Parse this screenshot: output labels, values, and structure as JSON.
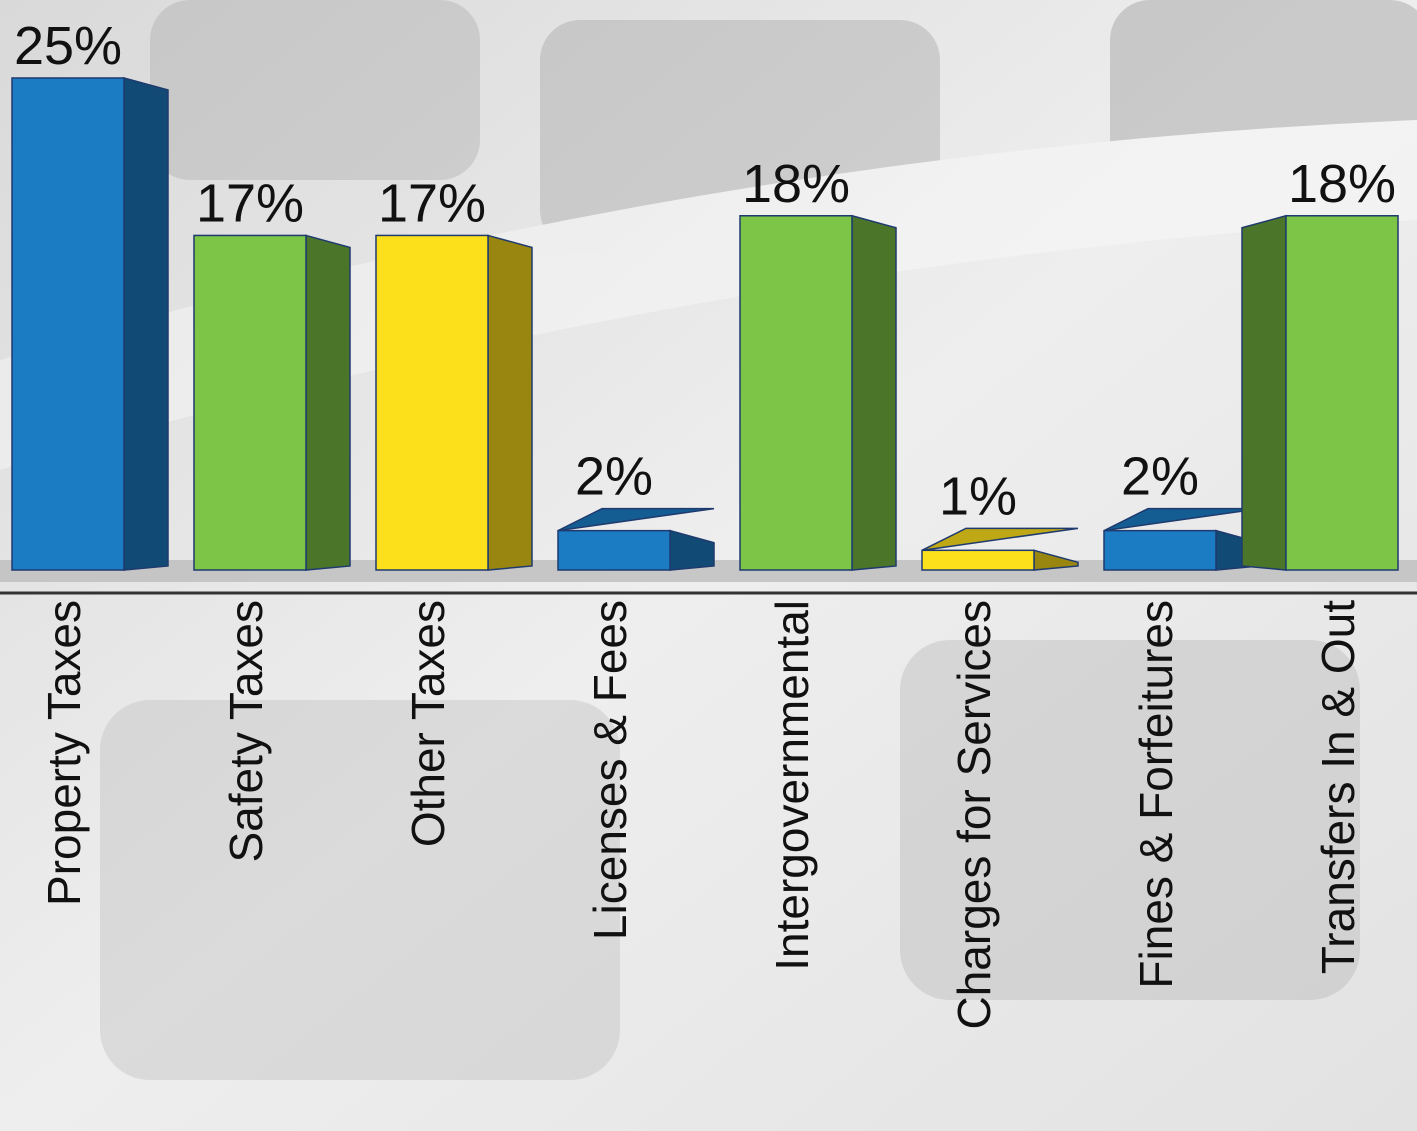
{
  "chart_data": {
    "type": "bar",
    "categories": [
      "Property Taxes",
      "Safety Taxes",
      "Other Taxes",
      "Licenses & Fees",
      "Intergovernmental",
      "Charges for Services",
      "Fines & Forfeitures",
      "Transfers In & Out"
    ],
    "values": [
      25,
      17,
      17,
      2,
      18,
      1,
      2,
      18
    ],
    "value_labels": [
      "25%",
      "17%",
      "17%",
      "2%",
      "18%",
      "1%",
      "2%",
      "18%"
    ],
    "colors": [
      "#1b7cc3",
      "#7dc546",
      "#fde01c",
      "#1b7cc3",
      "#7dc546",
      "#fde01c",
      "#1b7cc3",
      "#7dc546"
    ]
  }
}
